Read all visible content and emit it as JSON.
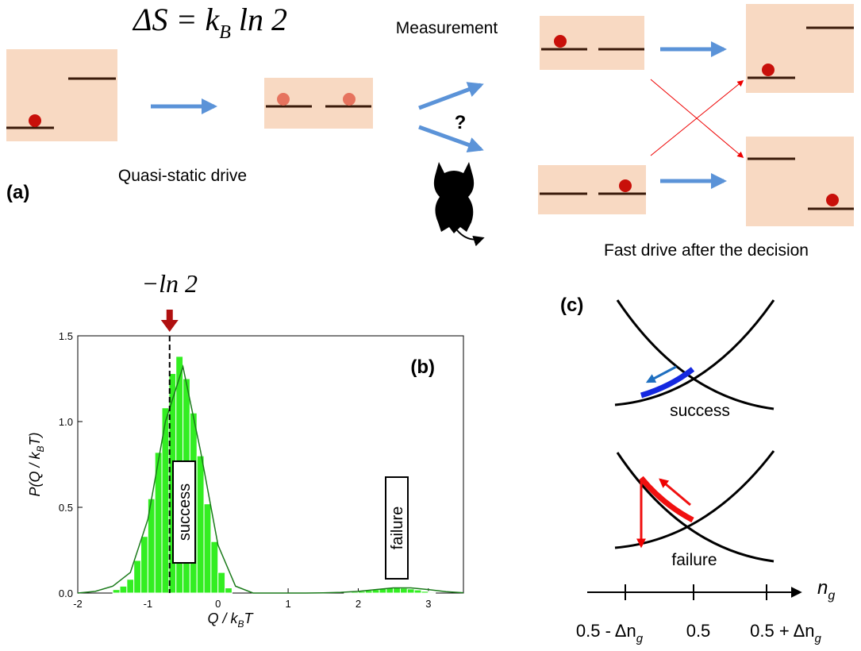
{
  "panel_a": {
    "label": "(a)",
    "formula": [
      "ΔS = k",
      "B",
      " ln 2"
    ],
    "measurement": "Measurement",
    "quasi_static": "Quasi-static drive",
    "question": "?",
    "fast_drive": "Fast drive after the decision"
  },
  "chart_data": {
    "type": "histogram",
    "panel_label": "(b)",
    "annotation": {
      "label": "−ln 2",
      "x": -0.69
    },
    "xlabel": [
      "Q / k",
      "B",
      "T"
    ],
    "ylabel": [
      "P(Q / k",
      "B",
      "T)"
    ],
    "bins": [
      -1.5,
      -1.4,
      -1.3,
      -1.2,
      -1.1,
      -1,
      -0.9,
      -0.8,
      -0.7,
      -0.6,
      -0.5,
      -0.4,
      -0.3,
      -0.2,
      -0.1,
      0,
      0.1,
      0.2,
      0.3,
      0.4,
      0.5,
      0.6,
      0.7,
      0.8,
      0.9,
      1,
      1.1,
      1.2,
      1.3,
      1.4,
      1.5,
      1.6,
      1.7,
      1.8,
      1.9,
      2,
      2.1,
      2.2,
      2.3,
      2.4,
      2.5,
      2.6,
      2.7,
      2.8,
      2.9,
      3,
      3.1
    ],
    "values": [
      0.02,
      0.04,
      0.08,
      0.19,
      0.33,
      0.55,
      0.82,
      1.08,
      1.28,
      1.38,
      1.25,
      1.05,
      0.8,
      0.52,
      0.3,
      0.12,
      0.03,
      0,
      0,
      0,
      0,
      0,
      0,
      0,
      0,
      0,
      0,
      0,
      0,
      0,
      0,
      0,
      0,
      0.004,
      0.007,
      0.01,
      0.015,
      0.02,
      0.026,
      0.03,
      0.03,
      0.028,
      0.024,
      0.018,
      0.01,
      0.005
    ],
    "color": "#33ee22",
    "fit": {
      "color": "#1a7a1a",
      "x": [
        -2,
        -1.75,
        -1.5,
        -1.25,
        -1,
        -0.75,
        -0.5,
        -0.25,
        0,
        0.25,
        0.5,
        0.75,
        1,
        1.25,
        1.5,
        1.75,
        2,
        2.25,
        2.5,
        2.75,
        3,
        3.25,
        3.5
      ],
      "values": [
        0,
        0.01,
        0.04,
        0.12,
        0.43,
        1.0,
        1.32,
        0.83,
        0.28,
        0.04,
        0,
        0,
        0,
        0,
        0.001,
        0.004,
        0.01,
        0.02,
        0.03,
        0.03,
        0.02,
        0.008,
        0.002
      ]
    },
    "labels": [
      "success",
      "failure"
    ],
    "xlim": [
      -2,
      3.5
    ],
    "ylim": [
      0,
      1.5
    ],
    "xticks": [
      -2,
      -1,
      0,
      1,
      2,
      3
    ],
    "yticks": [
      {
        "value": 0,
        "label": "0.0"
      },
      {
        "value": 0.5,
        "label": "0.5"
      },
      {
        "value": 1,
        "label": "1.0"
      },
      {
        "value": 1.5,
        "label": "1.5"
      }
    ]
  },
  "panel_c": {
    "label": "(c)",
    "success": "success",
    "failure": "failure",
    "axis": [
      "n",
      "g"
    ],
    "ticks": [
      [
        "0.5 - Δn",
        "g"
      ],
      [
        "0.5"
      ],
      [
        "0.5 + Δn",
        "g"
      ]
    ]
  }
}
